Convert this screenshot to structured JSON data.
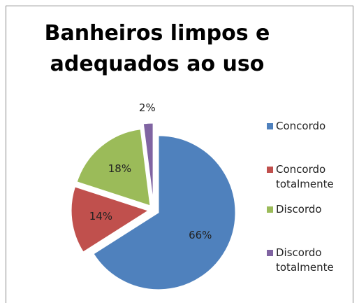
{
  "chart_data": {
    "type": "pie",
    "title": "Banheiros limpos e adequados ao uso",
    "categories": [
      "Concordo",
      "Concordo totalmente",
      "Discordo",
      "Discordo totalmente"
    ],
    "values": [
      66,
      14,
      18,
      2
    ],
    "value_labels": [
      "66%",
      "14%",
      "18%",
      "2%"
    ],
    "colors": [
      "#4f81bd",
      "#c0504d",
      "#9bbb59",
      "#8064a2"
    ],
    "legend": "right"
  }
}
